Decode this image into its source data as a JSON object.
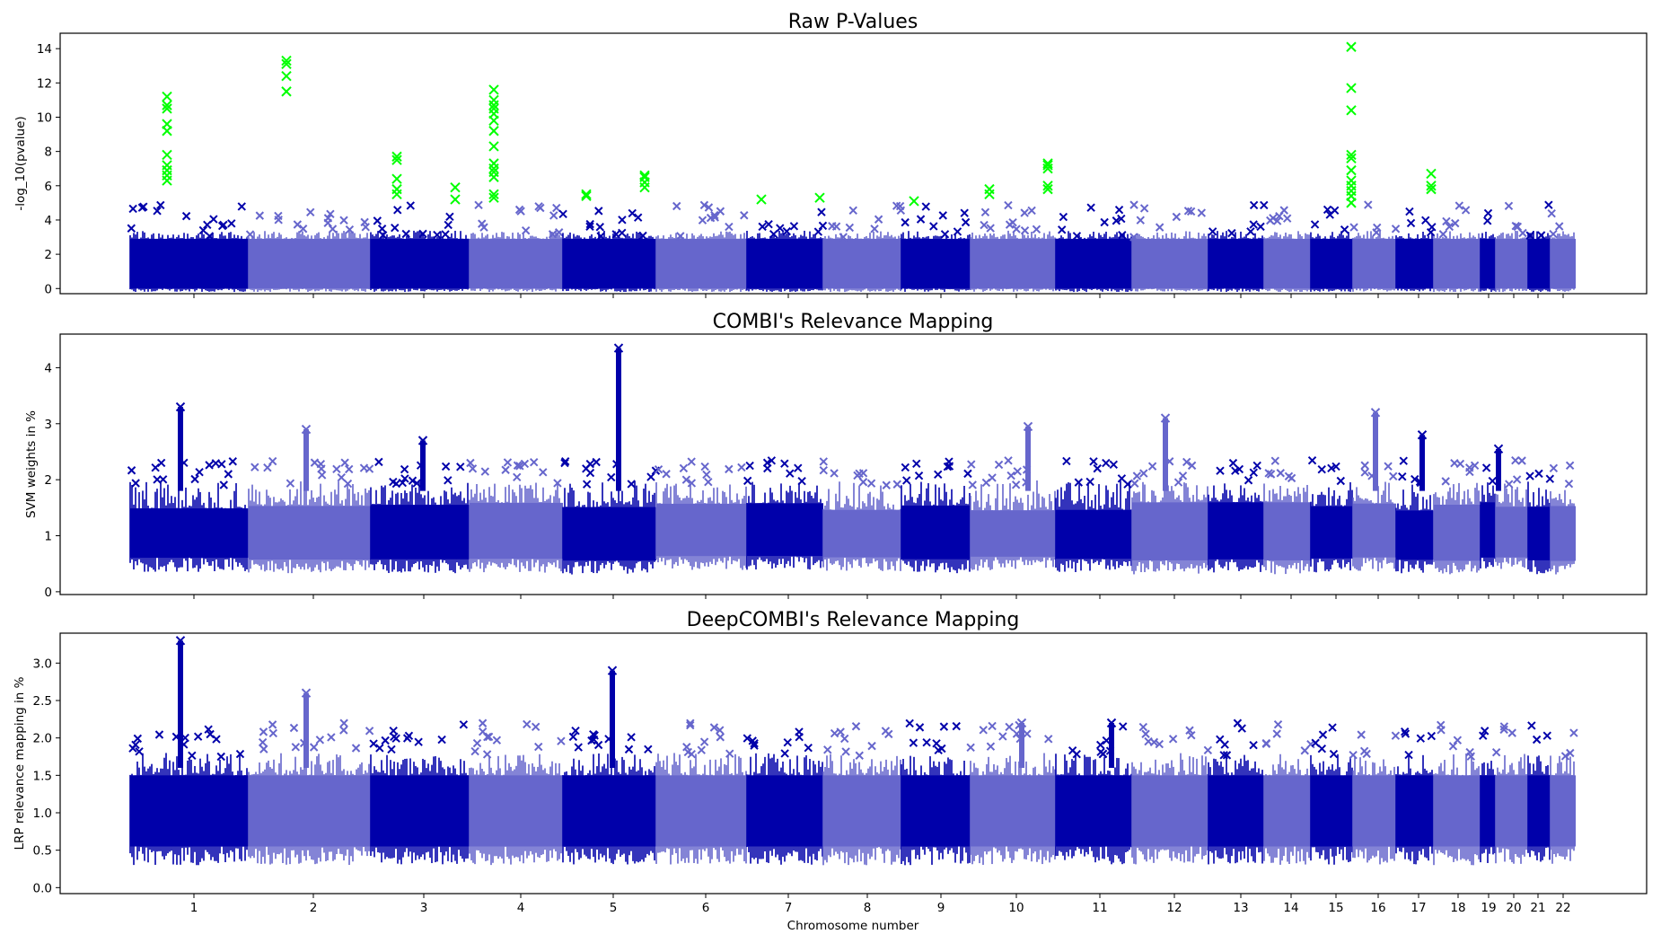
{
  "figure": {
    "xlabel": "Chromosome number",
    "chromosome_labels": [
      "1",
      "2",
      "3",
      "4",
      "5",
      "6",
      "7",
      "8",
      "9",
      "10",
      "11",
      "12",
      "13",
      "14",
      "15",
      "16",
      "17",
      "18",
      "19",
      "20",
      "21",
      "22"
    ],
    "colors": {
      "dark": "#0000aa",
      "light": "#6666cc",
      "highlight": "#00ff00"
    }
  },
  "chart_data": [
    {
      "type": "scatter",
      "title": "Raw P-Values",
      "ylabel": "-log_10(pvalue)",
      "ylim": [
        -0.3,
        14.9
      ],
      "yticks": [
        "0",
        "2",
        "4",
        "6",
        "8",
        "10",
        "12",
        "14"
      ],
      "ytick_values": [
        0,
        2,
        4,
        6,
        8,
        10,
        12,
        14
      ],
      "band_range": [
        0,
        3
      ],
      "significance_threshold": 5,
      "highlight_hits": [
        {
          "chromosome": "1",
          "values": [
            6.3,
            6.6,
            6.9,
            7.2,
            7.8,
            9.2,
            9.6,
            10.5,
            10.7,
            11.2
          ]
        },
        {
          "chromosome": "2",
          "values": [
            11.5,
            12.4,
            13.1,
            13.3
          ]
        },
        {
          "chromosome": "3",
          "values": [
            5.5,
            5.8,
            6.4,
            7.5,
            7.7
          ]
        },
        {
          "chromosome": "3",
          "values": [
            5.2,
            5.9
          ]
        },
        {
          "chromosome": "4",
          "values": [
            5.3,
            5.5,
            6.5,
            6.8,
            7.0,
            7.3,
            8.3,
            9.2,
            9.8,
            10.2,
            10.5,
            10.7,
            11.0,
            11.6
          ]
        },
        {
          "chromosome": "5",
          "values": [
            5.4,
            5.5
          ]
        },
        {
          "chromosome": "5",
          "values": [
            5.9,
            6.2,
            6.5,
            6.6
          ]
        },
        {
          "chromosome": "7",
          "values": [
            5.2
          ]
        },
        {
          "chromosome": "7",
          "values": [
            5.3
          ]
        },
        {
          "chromosome": "9",
          "values": [
            5.1
          ]
        },
        {
          "chromosome": "10",
          "values": [
            5.5,
            5.8
          ]
        },
        {
          "chromosome": "10",
          "values": [
            5.8,
            6.0,
            7.0,
            7.2,
            7.3
          ]
        },
        {
          "chromosome": "16",
          "values": [
            5.0,
            5.4,
            5.7,
            6.0,
            6.3,
            6.9,
            7.6,
            7.8,
            10.4,
            11.7,
            14.1
          ]
        },
        {
          "chromosome": "18",
          "values": [
            5.8,
            6.0,
            6.7
          ]
        }
      ]
    },
    {
      "type": "scatter",
      "title": "COMBI's Relevance Mapping",
      "ylabel": "SVM weights in %",
      "ylim": [
        -0.05,
        4.6
      ],
      "yticks": [
        "0",
        "1",
        "2",
        "3",
        "4"
      ],
      "ytick_values": [
        0,
        1,
        2,
        3,
        4
      ],
      "peaks": [
        {
          "chromosome": "1",
          "max": 3.3
        },
        {
          "chromosome": "2",
          "max": 2.9
        },
        {
          "chromosome": "3",
          "max": 2.7
        },
        {
          "chromosome": "5",
          "max": 4.35
        },
        {
          "chromosome": "10",
          "max": 2.95
        },
        {
          "chromosome": "12",
          "max": 3.1
        },
        {
          "chromosome": "16",
          "max": 3.2
        },
        {
          "chromosome": "17",
          "max": 2.8
        },
        {
          "chromosome": "19",
          "max": 2.55
        }
      ]
    },
    {
      "type": "scatter",
      "title": "DeepCOMBI's Relevance Mapping",
      "ylabel": "LRP relevance mapping in %",
      "ylim": [
        -0.08,
        3.4
      ],
      "yticks": [
        "0.0",
        "0.5",
        "1.0",
        "1.5",
        "2.0",
        "2.5",
        "3.0"
      ],
      "ytick_values": [
        0,
        0.5,
        1.0,
        1.5,
        2.0,
        2.5,
        3.0
      ],
      "peaks": [
        {
          "chromosome": "1",
          "max": 3.3
        },
        {
          "chromosome": "2",
          "max": 2.6
        },
        {
          "chromosome": "5",
          "max": 2.9
        },
        {
          "chromosome": "10",
          "max": 2.2
        },
        {
          "chromosome": "11",
          "max": 2.2
        }
      ]
    }
  ]
}
